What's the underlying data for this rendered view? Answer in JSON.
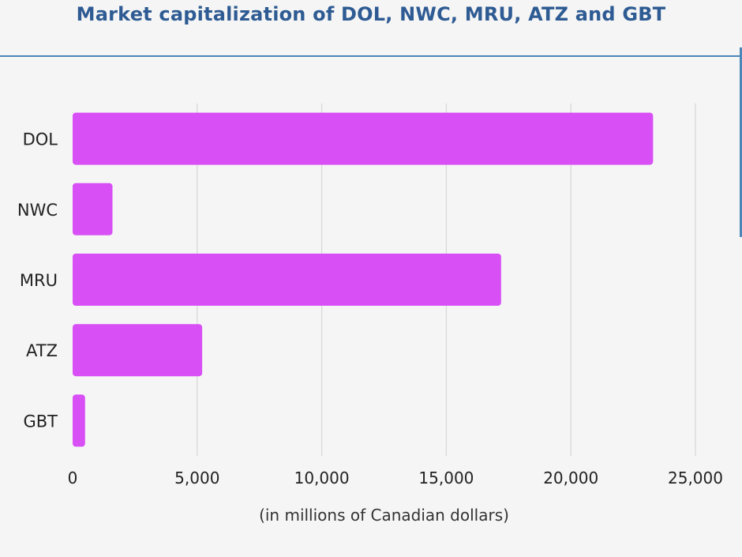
{
  "chart_data": {
    "type": "bar",
    "orientation": "horizontal",
    "title": "Market capitalization of DOL, NWC, MRU, ATZ and GBT",
    "xlabel": "(in millions of Canadian dollars)",
    "ylabel": "",
    "categories": [
      "DOL",
      "NWC",
      "MRU",
      "ATZ",
      "GBT"
    ],
    "values": [
      23300,
      1600,
      17200,
      5200,
      500
    ],
    "xlim": [
      0,
      25000
    ],
    "xticks": [
      0,
      5000,
      10000,
      15000,
      20000,
      25000
    ],
    "xtick_labels": [
      "0",
      "5,000",
      "10,000",
      "15,000",
      "20,000",
      "25,000"
    ],
    "grid": "vertical",
    "bar_color": "#d84ff5",
    "title_color": "#2e5b93",
    "gridline_color": "#d6d6d6"
  }
}
